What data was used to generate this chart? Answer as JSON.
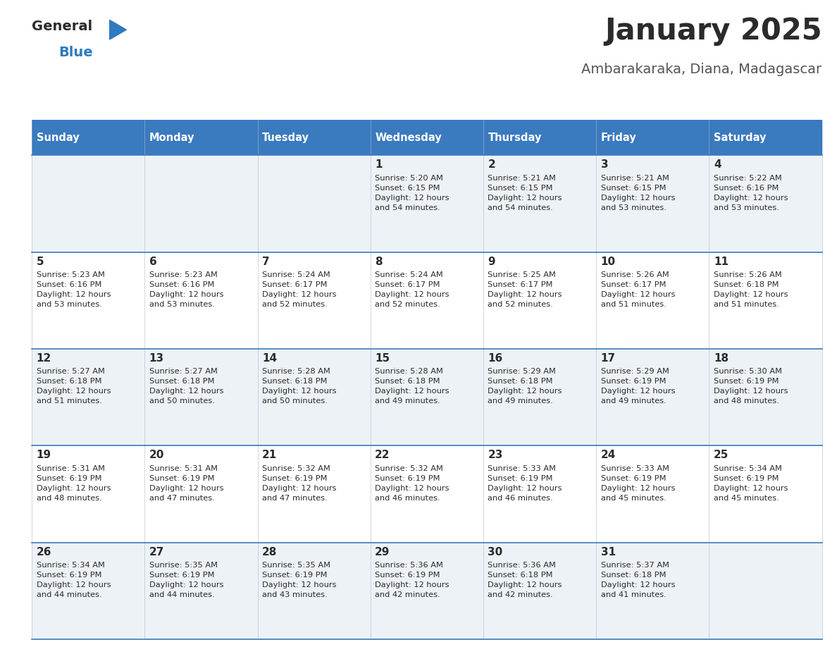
{
  "title": "January 2025",
  "subtitle": "Ambarakaraka, Diana, Madagascar",
  "days_of_week": [
    "Sunday",
    "Monday",
    "Tuesday",
    "Wednesday",
    "Thursday",
    "Friday",
    "Saturday"
  ],
  "header_bg_color": "#3a7abf",
  "header_text_color": "#ffffff",
  "cell_bg_row0": "#edf2f7",
  "cell_bg_row1": "#ffffff",
  "cell_bg_row2": "#edf2f7",
  "cell_bg_row3": "#ffffff",
  "cell_bg_row4": "#edf2f7",
  "row_line_color": "#3a7abf",
  "title_color": "#2b2b2b",
  "subtitle_color": "#555555",
  "day_number_color": "#2b2b2b",
  "cell_text_color": "#2b2b2b",
  "logo_general_color": "#2b2b2b",
  "logo_blue_color": "#2d7abf",
  "logo_triangle_color": "#2d7abf",
  "calendar_data": [
    [
      null,
      null,
      null,
      {
        "day": 1,
        "sunrise": "5:20 AM",
        "sunset": "6:15 PM",
        "daylight": "12 hours and 54 minutes."
      },
      {
        "day": 2,
        "sunrise": "5:21 AM",
        "sunset": "6:15 PM",
        "daylight": "12 hours and 54 minutes."
      },
      {
        "day": 3,
        "sunrise": "5:21 AM",
        "sunset": "6:15 PM",
        "daylight": "12 hours and 53 minutes."
      },
      {
        "day": 4,
        "sunrise": "5:22 AM",
        "sunset": "6:16 PM",
        "daylight": "12 hours and 53 minutes."
      }
    ],
    [
      {
        "day": 5,
        "sunrise": "5:23 AM",
        "sunset": "6:16 PM",
        "daylight": "12 hours and 53 minutes."
      },
      {
        "day": 6,
        "sunrise": "5:23 AM",
        "sunset": "6:16 PM",
        "daylight": "12 hours and 53 minutes."
      },
      {
        "day": 7,
        "sunrise": "5:24 AM",
        "sunset": "6:17 PM",
        "daylight": "12 hours and 52 minutes."
      },
      {
        "day": 8,
        "sunrise": "5:24 AM",
        "sunset": "6:17 PM",
        "daylight": "12 hours and 52 minutes."
      },
      {
        "day": 9,
        "sunrise": "5:25 AM",
        "sunset": "6:17 PM",
        "daylight": "12 hours and 52 minutes."
      },
      {
        "day": 10,
        "sunrise": "5:26 AM",
        "sunset": "6:17 PM",
        "daylight": "12 hours and 51 minutes."
      },
      {
        "day": 11,
        "sunrise": "5:26 AM",
        "sunset": "6:18 PM",
        "daylight": "12 hours and 51 minutes."
      }
    ],
    [
      {
        "day": 12,
        "sunrise": "5:27 AM",
        "sunset": "6:18 PM",
        "daylight": "12 hours and 51 minutes."
      },
      {
        "day": 13,
        "sunrise": "5:27 AM",
        "sunset": "6:18 PM",
        "daylight": "12 hours and 50 minutes."
      },
      {
        "day": 14,
        "sunrise": "5:28 AM",
        "sunset": "6:18 PM",
        "daylight": "12 hours and 50 minutes."
      },
      {
        "day": 15,
        "sunrise": "5:28 AM",
        "sunset": "6:18 PM",
        "daylight": "12 hours and 49 minutes."
      },
      {
        "day": 16,
        "sunrise": "5:29 AM",
        "sunset": "6:18 PM",
        "daylight": "12 hours and 49 minutes."
      },
      {
        "day": 17,
        "sunrise": "5:29 AM",
        "sunset": "6:19 PM",
        "daylight": "12 hours and 49 minutes."
      },
      {
        "day": 18,
        "sunrise": "5:30 AM",
        "sunset": "6:19 PM",
        "daylight": "12 hours and 48 minutes."
      }
    ],
    [
      {
        "day": 19,
        "sunrise": "5:31 AM",
        "sunset": "6:19 PM",
        "daylight": "12 hours and 48 minutes."
      },
      {
        "day": 20,
        "sunrise": "5:31 AM",
        "sunset": "6:19 PM",
        "daylight": "12 hours and 47 minutes."
      },
      {
        "day": 21,
        "sunrise": "5:32 AM",
        "sunset": "6:19 PM",
        "daylight": "12 hours and 47 minutes."
      },
      {
        "day": 22,
        "sunrise": "5:32 AM",
        "sunset": "6:19 PM",
        "daylight": "12 hours and 46 minutes."
      },
      {
        "day": 23,
        "sunrise": "5:33 AM",
        "sunset": "6:19 PM",
        "daylight": "12 hours and 46 minutes."
      },
      {
        "day": 24,
        "sunrise": "5:33 AM",
        "sunset": "6:19 PM",
        "daylight": "12 hours and 45 minutes."
      },
      {
        "day": 25,
        "sunrise": "5:34 AM",
        "sunset": "6:19 PM",
        "daylight": "12 hours and 45 minutes."
      }
    ],
    [
      {
        "day": 26,
        "sunrise": "5:34 AM",
        "sunset": "6:19 PM",
        "daylight": "12 hours and 44 minutes."
      },
      {
        "day": 27,
        "sunrise": "5:35 AM",
        "sunset": "6:19 PM",
        "daylight": "12 hours and 44 minutes."
      },
      {
        "day": 28,
        "sunrise": "5:35 AM",
        "sunset": "6:19 PM",
        "daylight": "12 hours and 43 minutes."
      },
      {
        "day": 29,
        "sunrise": "5:36 AM",
        "sunset": "6:19 PM",
        "daylight": "12 hours and 42 minutes."
      },
      {
        "day": 30,
        "sunrise": "5:36 AM",
        "sunset": "6:18 PM",
        "daylight": "12 hours and 42 minutes."
      },
      {
        "day": 31,
        "sunrise": "5:37 AM",
        "sunset": "6:18 PM",
        "daylight": "12 hours and 41 minutes."
      },
      null
    ]
  ]
}
